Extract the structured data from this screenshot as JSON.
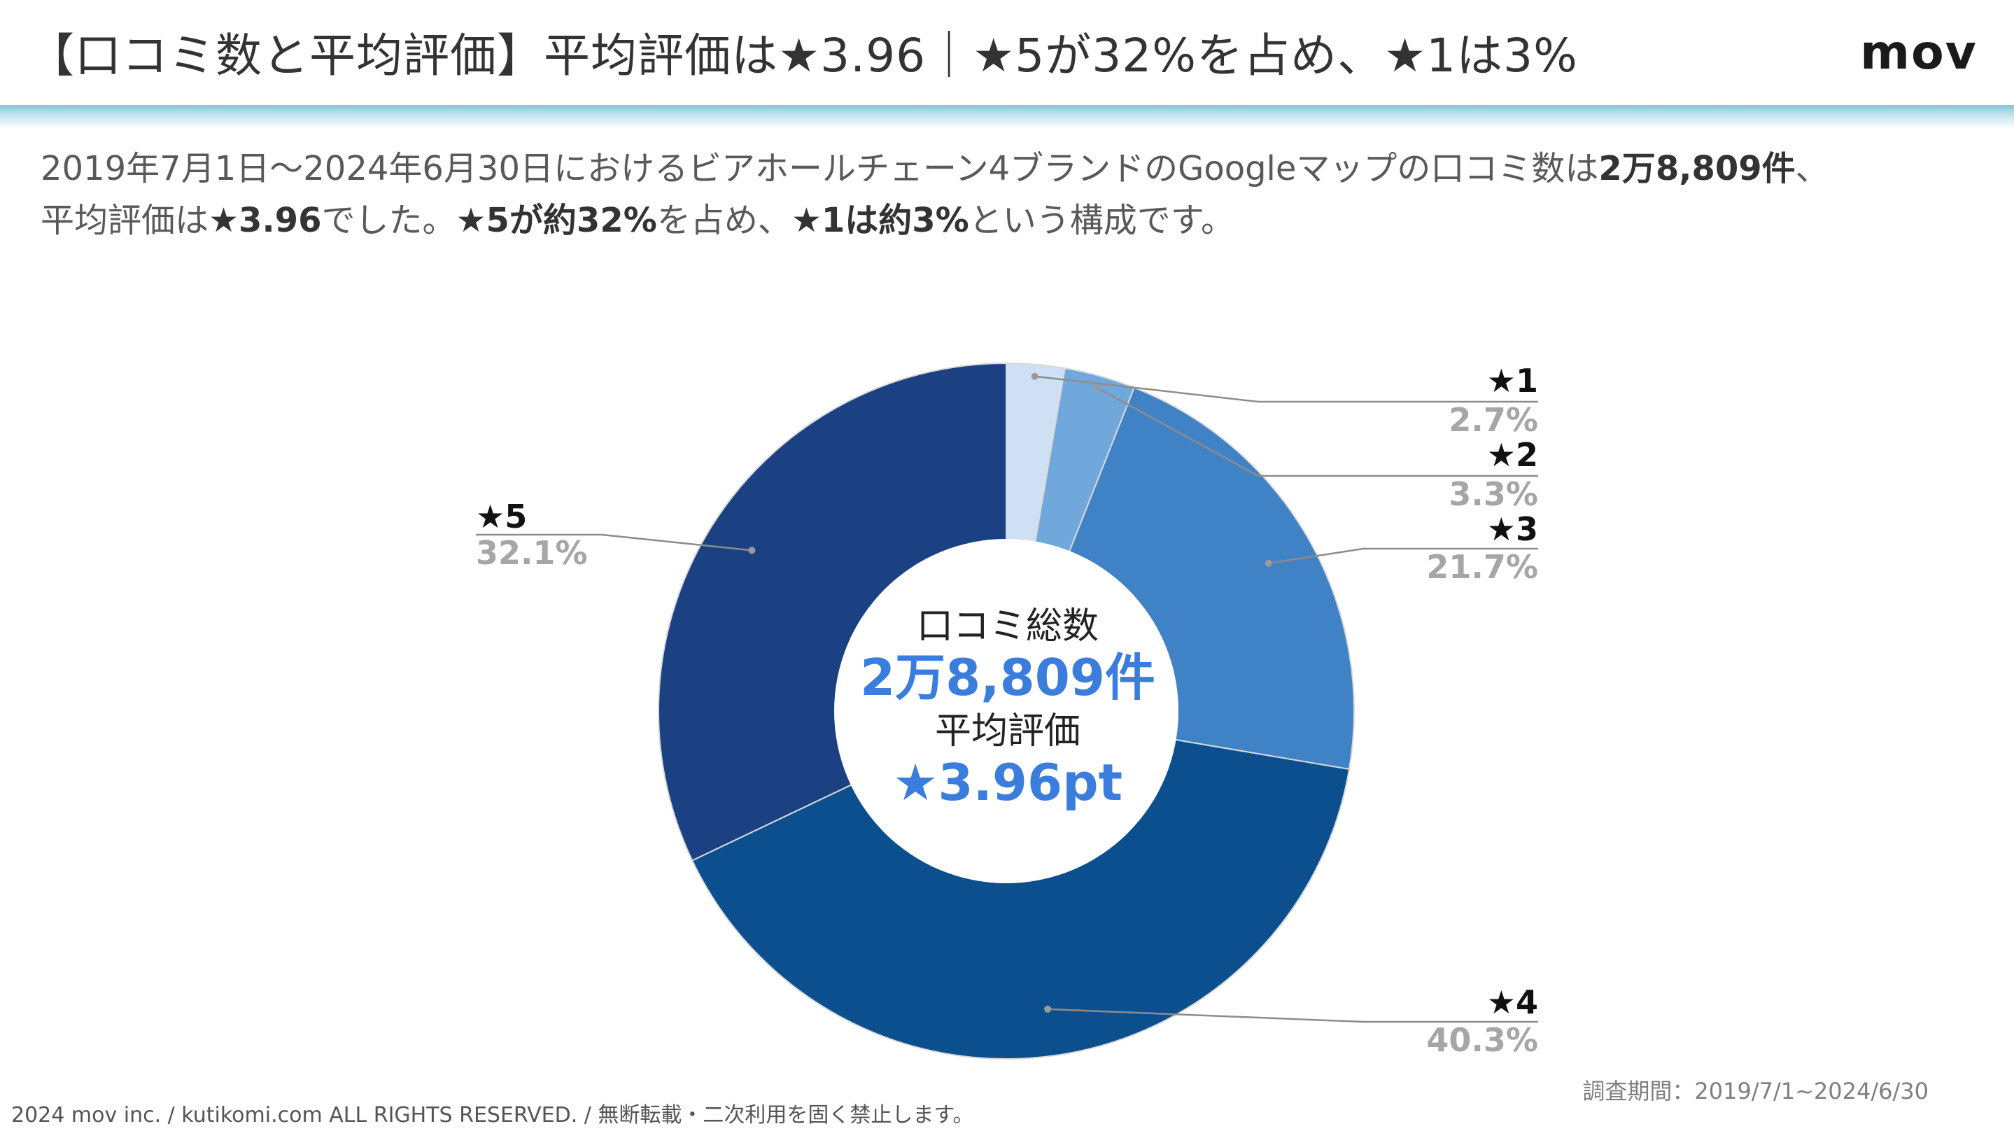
{
  "header": {
    "title": "【口コミ数と平均評価】平均評価は★3.96｜★5が32%を占め、★1は3%",
    "logo": "mov"
  },
  "lead": {
    "t1": "2019年7月1日〜2024年6月30日におけるビアホールチェーン4ブランドのGoogleマップの口コミ数は",
    "b1": "2万8,809件",
    "t2": "、",
    "t3": "平均評価は",
    "b2": "★3.96",
    "t4": "でした。",
    "b3": "★5が約32%",
    "t5": "を占め、",
    "b4": "★1は約3%",
    "t6": "という構成です。"
  },
  "center": {
    "label1": "口コミ総数",
    "value1": "2万8,809件",
    "label2": "平均評価",
    "value2": "★3.96pt"
  },
  "chart_data": {
    "type": "pie",
    "subtype": "donut",
    "start": "top",
    "direction": "clockwise",
    "categories": [
      "★1",
      "★2",
      "★3",
      "★4",
      "★5"
    ],
    "values": [
      2.7,
      3.3,
      21.7,
      40.3,
      32.1
    ],
    "data_labels": [
      "2.7%",
      "3.3%",
      "21.7%",
      "40.3%",
      "32.1%"
    ],
    "colors": [
      "#cfe0f4",
      "#70a8dc",
      "#3f83c6",
      "#0c4f8e",
      "#1c4183"
    ],
    "label_name_color": "#111111",
    "label_value_color": "#a6a6a6",
    "accent_color": "#3b7ddd"
  },
  "footer": {
    "copyright": "2024 mov inc. / kutikomi.com ALL RIGHTS RESERVED. / 無断転載・二次利用を固く禁止します。",
    "period": "調査期間：2019/7/1~2024/6/30"
  }
}
